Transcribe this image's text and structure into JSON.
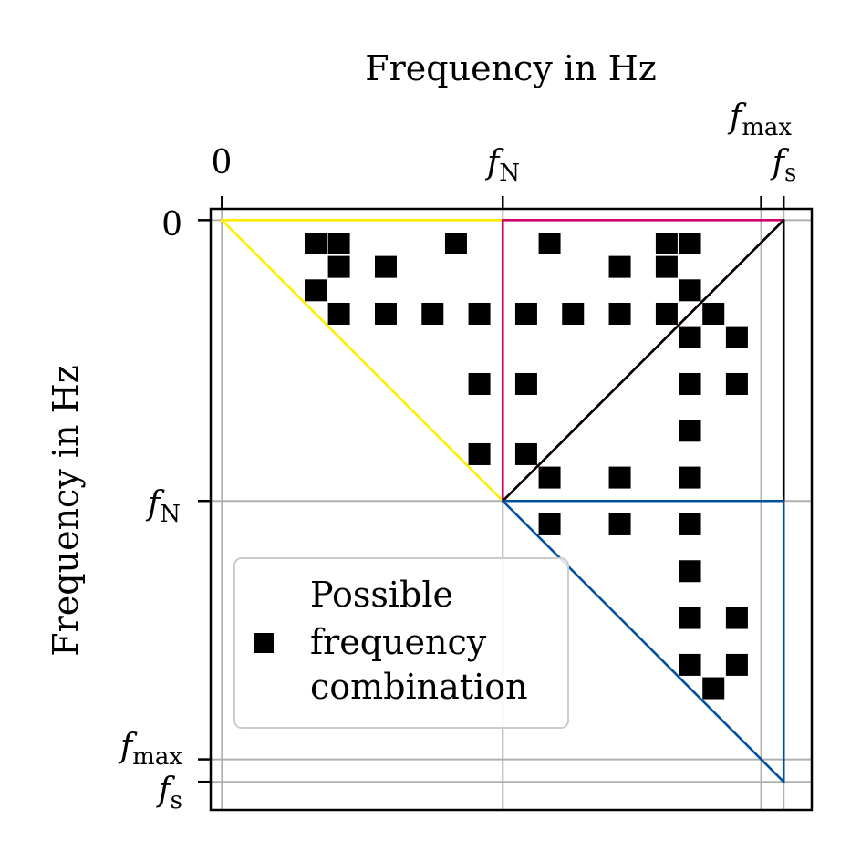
{
  "chart_data": {
    "type": "scatter",
    "title": "",
    "xlabel": "Frequency in Hz",
    "ylabel": "Frequency in Hz",
    "grid": true,
    "axis_units": "fraction of sampling frequency f_s (f_N = 0.5, f_max = 0.96, f_s = 1.0)",
    "xlim": [
      -0.02,
      1.05
    ],
    "ylim": [
      -0.02,
      1.05
    ],
    "ticks": [
      {
        "id": "zero",
        "value": 0.0,
        "label": "0",
        "sub": ""
      },
      {
        "id": "fN",
        "value": 0.5,
        "label": "f",
        "sub": "N"
      },
      {
        "id": "fmax",
        "value": 0.96,
        "label": "f",
        "sub": "max"
      },
      {
        "id": "fs",
        "value": 1.0,
        "label": "f",
        "sub": "s"
      }
    ],
    "triangles": [
      {
        "name": "yellow-region",
        "color": "#ffee00",
        "points": [
          [
            0,
            0
          ],
          [
            0.5,
            0
          ],
          [
            0.5,
            0.5
          ]
        ]
      },
      {
        "name": "magenta-region",
        "color": "#d0006f",
        "points": [
          [
            0.5,
            0
          ],
          [
            1.0,
            0
          ],
          [
            0.5,
            0.5
          ]
        ]
      },
      {
        "name": "black-region",
        "color": "#000000",
        "points": [
          [
            1.0,
            0
          ],
          [
            1.0,
            0.5
          ],
          [
            0.5,
            0.5
          ]
        ]
      },
      {
        "name": "blue-region",
        "color": "#00509b",
        "points": [
          [
            0.5,
            0.5
          ],
          [
            1.0,
            0.5
          ],
          [
            1.0,
            1.0
          ]
        ]
      }
    ],
    "marker_color": "#000000",
    "series": [
      {
        "name": "Possible frequency combination",
        "marker": "square",
        "points": [
          [
            0.1667,
            0.0417
          ],
          [
            0.2083,
            0.0417
          ],
          [
            0.4167,
            0.0417
          ],
          [
            0.5833,
            0.0417
          ],
          [
            0.7917,
            0.0417
          ],
          [
            0.8333,
            0.0417
          ],
          [
            0.2083,
            0.0833
          ],
          [
            0.2917,
            0.0833
          ],
          [
            0.7083,
            0.0833
          ],
          [
            0.7917,
            0.0833
          ],
          [
            0.1667,
            0.125
          ],
          [
            0.8333,
            0.125
          ],
          [
            0.2083,
            0.1667
          ],
          [
            0.2917,
            0.1667
          ],
          [
            0.375,
            0.1667
          ],
          [
            0.4583,
            0.1667
          ],
          [
            0.5417,
            0.1667
          ],
          [
            0.625,
            0.1667
          ],
          [
            0.7083,
            0.1667
          ],
          [
            0.7917,
            0.1667
          ],
          [
            0.875,
            0.1667
          ],
          [
            0.8333,
            0.2083
          ],
          [
            0.9167,
            0.2083
          ],
          [
            0.4583,
            0.2917
          ],
          [
            0.5417,
            0.2917
          ],
          [
            0.8333,
            0.2917
          ],
          [
            0.9167,
            0.2917
          ],
          [
            0.8333,
            0.375
          ],
          [
            0.4583,
            0.4167
          ],
          [
            0.5417,
            0.4167
          ],
          [
            0.5833,
            0.4583
          ],
          [
            0.7083,
            0.4583
          ],
          [
            0.8333,
            0.4583
          ],
          [
            0.5833,
            0.5417
          ],
          [
            0.7083,
            0.5417
          ],
          [
            0.8333,
            0.5417
          ],
          [
            0.8333,
            0.625
          ],
          [
            0.8333,
            0.7083
          ],
          [
            0.9167,
            0.7083
          ],
          [
            0.8333,
            0.7917
          ],
          [
            0.9167,
            0.7917
          ],
          [
            0.875,
            0.8333
          ]
        ]
      }
    ],
    "legend": {
      "placement": "lower-left",
      "lines": [
        "Possible",
        "frequency",
        "combination"
      ]
    }
  }
}
